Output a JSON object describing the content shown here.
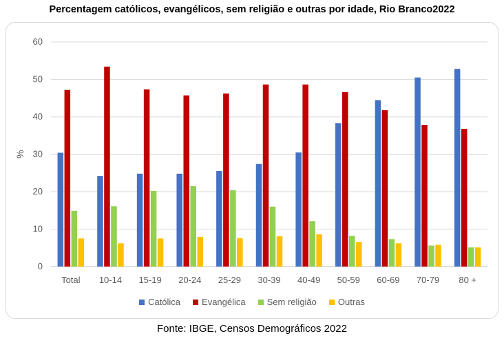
{
  "title": "Percentagem católicos, evangélicos, sem religião e outras por idade, Rio Branco2022",
  "source": "Fonte: IBGE, Censos Demográficos 2022",
  "chart_data": {
    "type": "bar",
    "title": "Percentagem católicos, evangélicos, sem religião e outras por idade, Rio Branco2022",
    "xlabel": "",
    "ylabel": "%",
    "ylim": [
      0,
      60
    ],
    "yticks": [
      0,
      10,
      20,
      30,
      40,
      50,
      60
    ],
    "grid": true,
    "legend_position": "bottom",
    "categories": [
      "Total",
      "10-14",
      "15-19",
      "20-24",
      "25-29",
      "30-39",
      "40-49",
      "50-59",
      "60-69",
      "70-79",
      "80 +"
    ],
    "series": [
      {
        "name": "Católica",
        "color": "#4472c4",
        "values": [
          30.4,
          24.2,
          24.8,
          24.8,
          25.5,
          27.4,
          30.5,
          38.3,
          44.4,
          50.5,
          52.8
        ]
      },
      {
        "name": "Evangélica",
        "color": "#c00000",
        "values": [
          47.2,
          53.4,
          47.3,
          45.7,
          46.2,
          48.6,
          48.6,
          46.6,
          41.8,
          37.8,
          36.7
        ]
      },
      {
        "name": "Sem religião",
        "color": "#92d050",
        "values": [
          14.9,
          16.1,
          20.2,
          21.5,
          20.4,
          16.0,
          12.1,
          8.2,
          7.3,
          5.6,
          5.1
        ]
      },
      {
        "name": "Outras",
        "color": "#ffc000",
        "values": [
          7.5,
          6.2,
          7.5,
          7.9,
          7.6,
          8.1,
          8.6,
          6.6,
          6.2,
          5.8,
          5.1
        ]
      }
    ]
  }
}
